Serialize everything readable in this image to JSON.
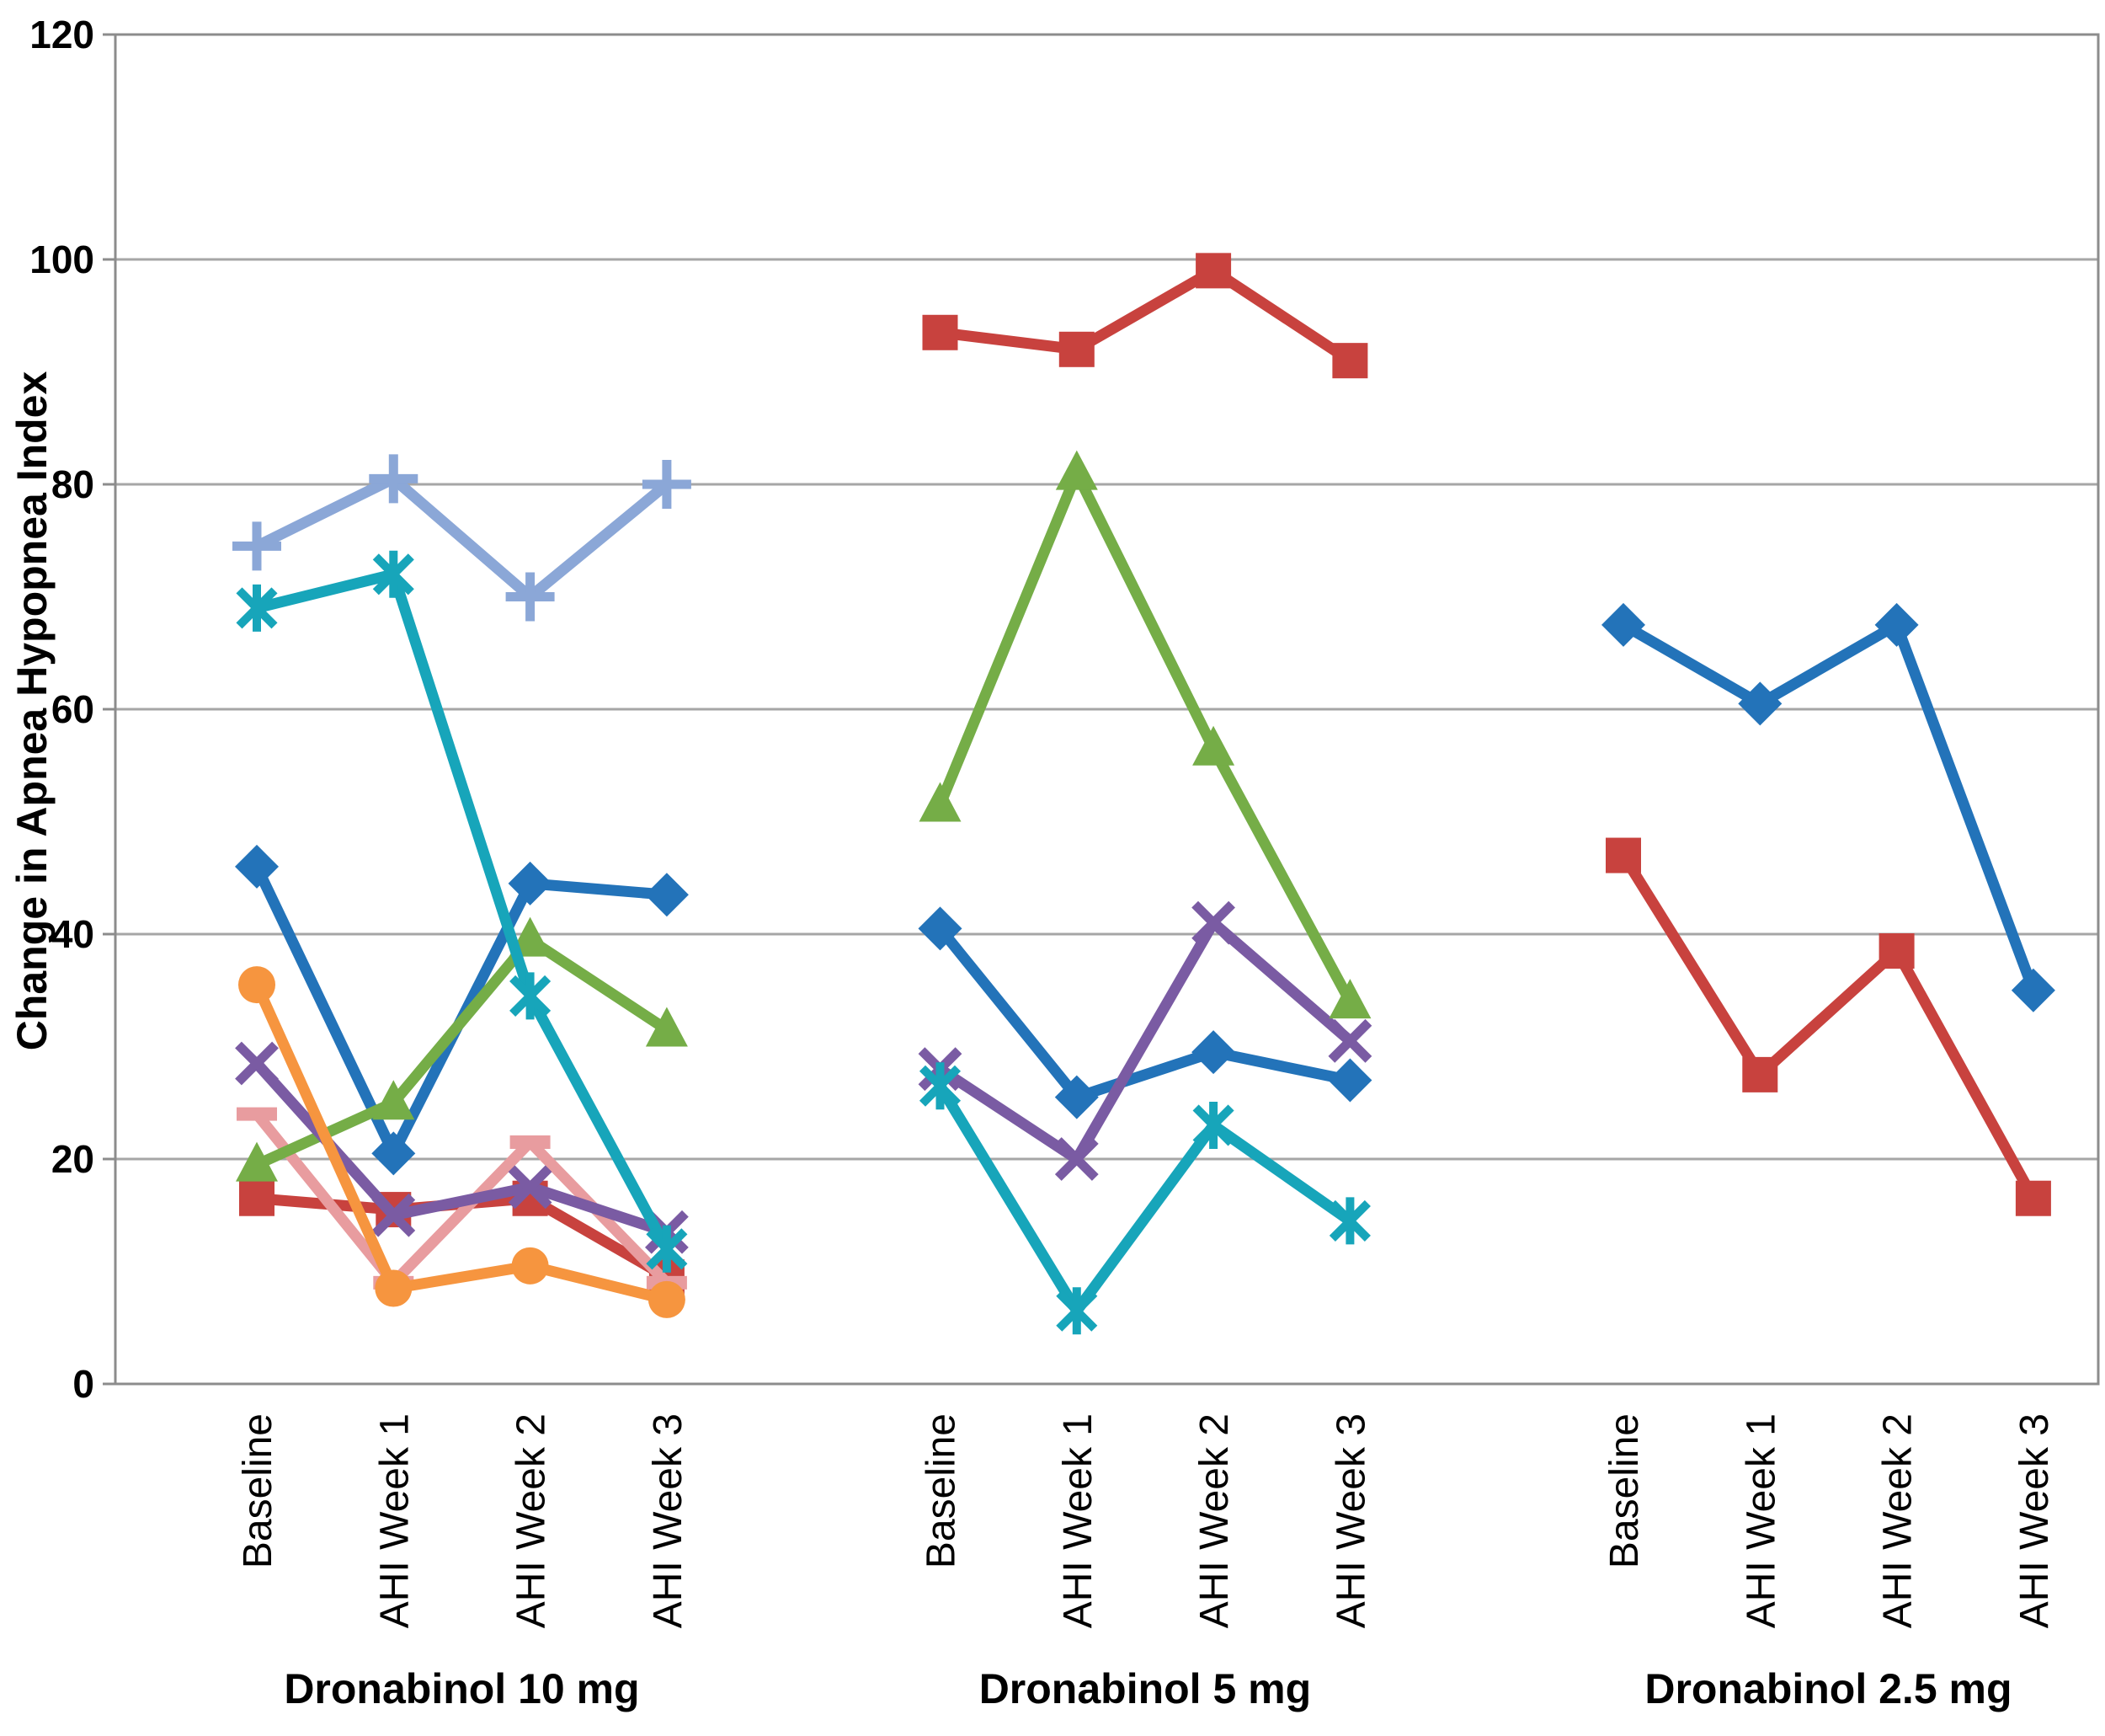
{
  "chart_data": {
    "type": "line",
    "title": "",
    "ylabel": "Change in Apnea Hypopnea Index",
    "xlabel": "",
    "ylim": [
      0,
      120
    ],
    "yticks": [
      0,
      20,
      40,
      60,
      80,
      100,
      120
    ],
    "grid": "horizontal",
    "legend": "none",
    "categories": [
      "Baseline",
      "AHI Week 1",
      "AHI Week 2",
      "AHI Week 3"
    ],
    "groups": [
      {
        "label": "Dronabinol 10 mg",
        "series": [
          {
            "name": "patient-plus",
            "marker": "plus",
            "color": "#8BA7D7",
            "values": [
              74.5,
              80.5,
              70,
              80
            ]
          },
          {
            "name": "patient-diamond",
            "marker": "diamond",
            "color": "#2373B9",
            "values": [
              46,
              20.5,
              44.5,
              43.5
            ]
          },
          {
            "name": "patient-square",
            "marker": "square",
            "color": "#C8423E",
            "values": [
              16.5,
              15.5,
              16.5,
              9.5
            ]
          },
          {
            "name": "patient-dash",
            "marker": "dash",
            "color": "#E89C9F",
            "values": [
              24,
              9,
              21.5,
              9
            ]
          },
          {
            "name": "patient-triangle",
            "marker": "triangle",
            "color": "#75AD47",
            "values": [
              19.5,
              25,
              39.5,
              31.5
            ]
          },
          {
            "name": "patient-x",
            "marker": "x",
            "color": "#7A5BA3",
            "values": [
              28.5,
              15,
              17.5,
              13.5
            ]
          },
          {
            "name": "patient-star",
            "marker": "star",
            "color": "#17A5BA",
            "values": [
              69,
              72,
              34.5,
              12
            ]
          },
          {
            "name": "patient-circle",
            "marker": "circle",
            "color": "#F6953F",
            "values": [
              35.5,
              8.5,
              10.5,
              7.5
            ]
          }
        ]
      },
      {
        "label": "Dronabinol 5 mg",
        "series": [
          {
            "name": "patient-square",
            "marker": "square",
            "color": "#C8423E",
            "values": [
              93.5,
              92,
              99,
              91
            ]
          },
          {
            "name": "patient-diamond",
            "marker": "diamond",
            "color": "#2373B9",
            "values": [
              40.5,
              25.5,
              29.5,
              27
            ]
          },
          {
            "name": "patient-x",
            "marker": "x",
            "color": "#7A5BA3",
            "values": [
              28,
              20,
              41,
              30.5
            ]
          },
          {
            "name": "patient-triangle",
            "marker": "triangle",
            "color": "#75AD47",
            "values": [
              51.5,
              81,
              56.5,
              34
            ]
          },
          {
            "name": "patient-star",
            "marker": "star",
            "color": "#17A5BA",
            "values": [
              26.5,
              6.5,
              23,
              14.5
            ]
          }
        ]
      },
      {
        "label": "Dronabinol 2.5 mg",
        "series": [
          {
            "name": "patient-diamond",
            "marker": "diamond",
            "color": "#2373B9",
            "values": [
              67.5,
              60.5,
              67.5,
              35
            ]
          },
          {
            "name": "patient-square",
            "marker": "square",
            "color": "#C8423E",
            "values": [
              47,
              27.5,
              38.5,
              16.5
            ]
          }
        ]
      }
    ],
    "style": {
      "background": "#FFFFFF",
      "grid_color": "#A6A6A6",
      "frame_color": "#8C8C8C",
      "text_color": "#000000"
    }
  }
}
